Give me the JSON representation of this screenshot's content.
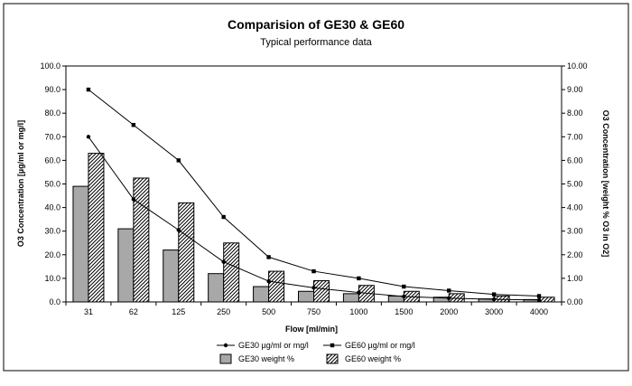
{
  "chart_data": {
    "type": "bar",
    "title": "Comparision of GE30 & GE60",
    "subtitle": "Typical performance data",
    "xlabel": "Flow [ml/min]",
    "ylabel_left": "O3 Concentration [µg/ml or mg/l]",
    "ylabel_right": "O3 Concentration [weight % O3 in O2]",
    "categories": [
      "31",
      "62",
      "125",
      "250",
      "500",
      "750",
      "1000",
      "1500",
      "2000",
      "3000",
      "4000"
    ],
    "ylim_left": [
      0,
      100
    ],
    "ylim_right": [
      0,
      10
    ],
    "yticks_left": [
      "0.0",
      "10.0",
      "20.0",
      "30.0",
      "40.0",
      "50.0",
      "60.0",
      "70.0",
      "80.0",
      "90.0",
      "100.0"
    ],
    "yticks_right": [
      "0.00",
      "1.00",
      "2.00",
      "3.00",
      "4.00",
      "5.00",
      "6.00",
      "7.00",
      "8.00",
      "9.00",
      "10.00"
    ],
    "grid": false,
    "legend_position": "bottom",
    "series": [
      {
        "name": "GE30 µg/ml or mg/l",
        "kind": "line",
        "axis": "left",
        "marker": "circle",
        "values": [
          70.0,
          43.5,
          30.5,
          17.0,
          8.8,
          6.0,
          4.0,
          2.3,
          1.6,
          1.1,
          0.8
        ]
      },
      {
        "name": "GE60 µg/ml or mg/l",
        "kind": "line",
        "axis": "left",
        "marker": "square",
        "values": [
          90.0,
          75.0,
          60.0,
          36.0,
          19.0,
          13.0,
          10.0,
          6.5,
          4.8,
          3.2,
          2.5
        ]
      },
      {
        "name": "GE30 weight %",
        "kind": "bar",
        "axis": "right",
        "fill": "solid-gray",
        "values": [
          4.9,
          3.1,
          2.2,
          1.2,
          0.65,
          0.45,
          0.35,
          0.25,
          0.2,
          0.13,
          0.1
        ]
      },
      {
        "name": "GE60 weight %",
        "kind": "bar",
        "axis": "right",
        "fill": "hatched",
        "values": [
          6.3,
          5.25,
          4.2,
          2.5,
          1.3,
          0.9,
          0.7,
          0.45,
          0.35,
          0.25,
          0.2
        ]
      }
    ]
  }
}
